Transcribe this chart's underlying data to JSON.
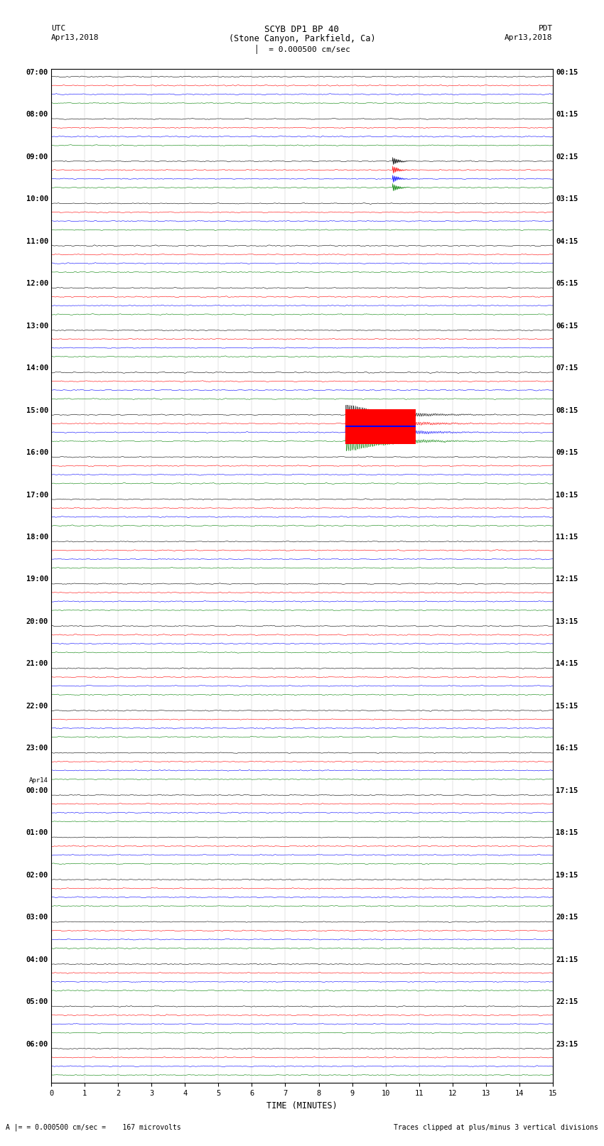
{
  "title_line1": "SCYB DP1 BP 40",
  "title_line2": "(Stone Canyon, Parkfield, Ca)",
  "scale_label": "= 0.000500 cm/sec",
  "left_header": "UTC",
  "left_date": "Apr13,2018",
  "right_header": "PDT",
  "right_date": "Apr13,2018",
  "bottom_label": "TIME (MINUTES)",
  "footnote_left": "= 0.000500 cm/sec =    167 microvolts",
  "footnote_right": "Traces clipped at plus/minus 3 vertical divisions",
  "minutes_per_row": 15,
  "fig_width": 8.5,
  "fig_height": 16.13,
  "bg_color": "white",
  "trace_colors": [
    "black",
    "red",
    "blue",
    "green"
  ],
  "utc_labels": [
    "07:00",
    "08:00",
    "09:00",
    "10:00",
    "11:00",
    "12:00",
    "13:00",
    "14:00",
    "15:00",
    "16:00",
    "17:00",
    "18:00",
    "19:00",
    "20:00",
    "21:00",
    "22:00",
    "23:00",
    "00:00",
    "01:00",
    "02:00",
    "03:00",
    "04:00",
    "05:00",
    "06:00"
  ],
  "apr14_row": 17,
  "pdt_labels": [
    "00:15",
    "01:15",
    "02:15",
    "03:15",
    "04:15",
    "05:15",
    "06:15",
    "07:15",
    "08:15",
    "09:15",
    "10:15",
    "11:15",
    "12:15",
    "13:15",
    "14:15",
    "15:15",
    "16:15",
    "17:15",
    "18:15",
    "19:15",
    "20:15",
    "21:15",
    "22:15",
    "23:15"
  ],
  "n_hour_rows": 24,
  "earthquake_hour_row": 8,
  "earthquake_minute": 8.8,
  "earthquake_duration": 1.5,
  "earthquake_row2_hour": 9,
  "small_eq_hour": 2,
  "small_eq_minute": 10.2
}
